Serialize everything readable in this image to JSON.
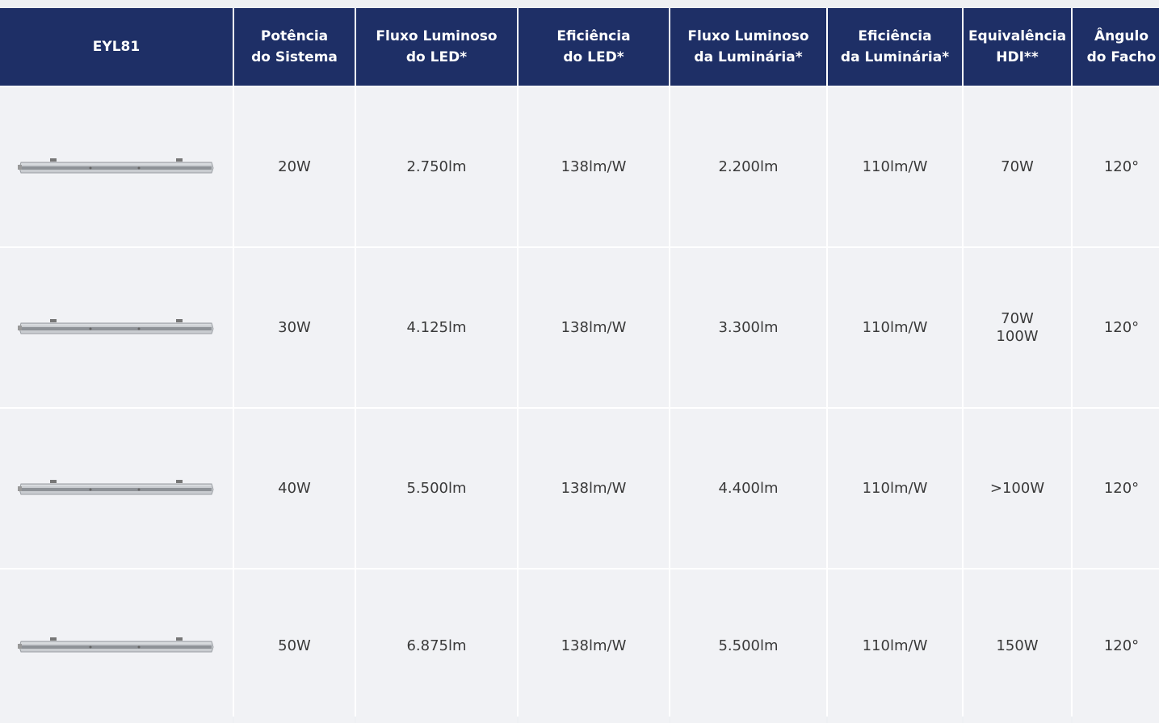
{
  "table": {
    "header": [
      [
        "EYL81"
      ],
      [
        "Potência",
        "do Sistema"
      ],
      [
        "Fluxo Luminoso",
        "do LED*"
      ],
      [
        "Eficiência",
        "do LED*"
      ],
      [
        "Fluxo Luminoso",
        "da Luminária*"
      ],
      [
        "Eficiência",
        "da Luminária*"
      ],
      [
        "Equivalência",
        "HDI**"
      ],
      [
        "Ângulo",
        "do Facho"
      ]
    ],
    "rows": [
      [
        "20W",
        "2.750lm",
        "138lm/W",
        "2.200lm",
        "110lm/W",
        [
          "70W"
        ],
        "120°"
      ],
      [
        "30W",
        "4.125lm",
        "138lm/W",
        "3.300lm",
        "110lm/W",
        [
          "70W",
          "100W"
        ],
        "120°"
      ],
      [
        "40W",
        "5.500lm",
        "138lm/W",
        "4.400lm",
        "110lm/W",
        [
          ">100W"
        ],
        "120°"
      ],
      [
        "50W",
        "6.875lm",
        "138lm/W",
        "5.500lm",
        "110lm/W",
        [
          "150W"
        ],
        "120°"
      ]
    ]
  }
}
